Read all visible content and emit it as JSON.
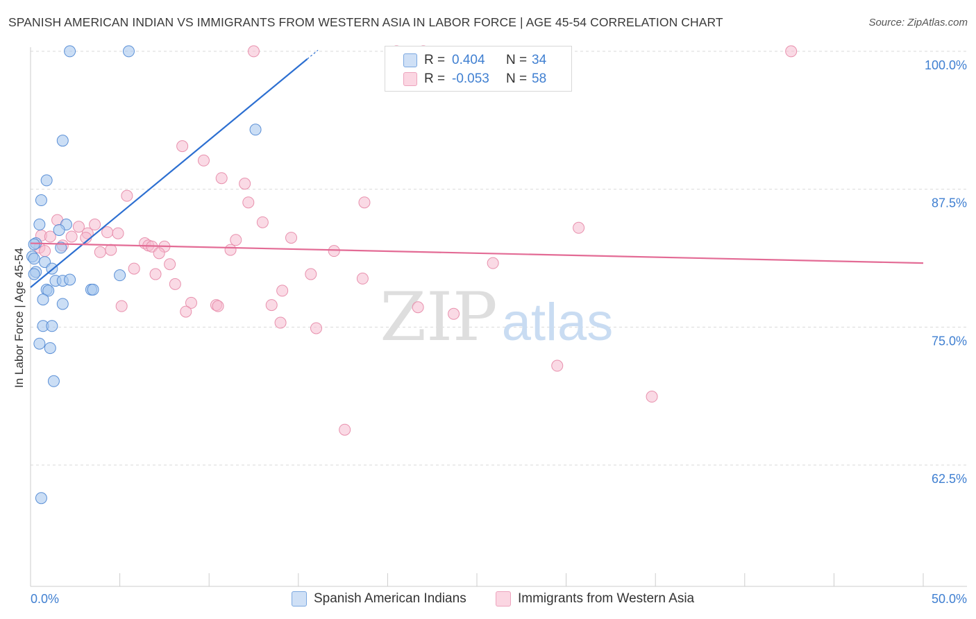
{
  "header": {
    "title": "SPANISH AMERICAN INDIAN VS IMMIGRANTS FROM WESTERN ASIA IN LABOR FORCE | AGE 45-54 CORRELATION CHART",
    "source": "Source: ZipAtlas.com"
  },
  "watermark": {
    "zip": "ZIP",
    "atlas": "atlas"
  },
  "legend": {
    "series1": {
      "r_label": "R =",
      "r_value": "0.404",
      "n_label": "N =",
      "n_value": "34"
    },
    "series2": {
      "r_label": "R =",
      "r_value": "-0.053",
      "n_label": "N =",
      "n_value": "58"
    }
  },
  "colors": {
    "blue_fill": "#a9c8ef",
    "blue_stroke": "#5a8fd6",
    "blue_line": "#2c6fd1",
    "pink_fill": "#f6bccf",
    "pink_stroke": "#e890ad",
    "pink_line": "#e36b95",
    "tick_label": "#3f7fd1",
    "grid": "#d9d9d9"
  },
  "chart_data": {
    "type": "scatter",
    "title": "SPANISH AMERICAN INDIAN VS IMMIGRANTS FROM WESTERN ASIA IN LABOR FORCE | AGE 45-54 CORRELATION CHART",
    "xlabel": "",
    "ylabel": "In Labor Force | Age 45-54",
    "xlim": [
      0,
      50
    ],
    "ylim": [
      51.5,
      101
    ],
    "x_tick_labels": [
      "0.0%",
      "50.0%"
    ],
    "y_ticks": [
      62.5,
      75.0,
      87.5,
      100.0
    ],
    "y_tick_labels": [
      "62.5%",
      "75.0%",
      "87.5%",
      "100.0%"
    ],
    "series": [
      {
        "name": "Spanish American Indians",
        "color": "#a9c8ef",
        "trend": {
          "x0": 0.0,
          "y0": 78.6,
          "x1": 15.5,
          "y1": 99.3
        },
        "points": [
          [
            2.2,
            100.0
          ],
          [
            5.5,
            100.0
          ],
          [
            12.6,
            92.9
          ],
          [
            1.8,
            91.9
          ],
          [
            0.9,
            88.3
          ],
          [
            0.6,
            86.5
          ],
          [
            0.5,
            84.3
          ],
          [
            2.0,
            84.3
          ],
          [
            1.6,
            83.8
          ],
          [
            0.3,
            82.6
          ],
          [
            1.7,
            82.2
          ],
          [
            0.1,
            81.4
          ],
          [
            0.2,
            81.2
          ],
          [
            0.8,
            80.9
          ],
          [
            1.2,
            80.3
          ],
          [
            0.3,
            80.0
          ],
          [
            0.2,
            79.8
          ],
          [
            5.0,
            79.7
          ],
          [
            1.4,
            79.2
          ],
          [
            1.8,
            79.2
          ],
          [
            2.2,
            79.3
          ],
          [
            0.9,
            78.4
          ],
          [
            1.0,
            78.3
          ],
          [
            3.4,
            78.4
          ],
          [
            3.5,
            78.4
          ],
          [
            0.7,
            77.5
          ],
          [
            1.8,
            77.1
          ],
          [
            0.7,
            75.1
          ],
          [
            1.2,
            75.1
          ],
          [
            0.5,
            73.5
          ],
          [
            1.1,
            73.1
          ],
          [
            1.3,
            70.1
          ],
          [
            0.6,
            59.5
          ],
          [
            0.2,
            82.5
          ]
        ]
      },
      {
        "name": "Immigrants from Western Asia",
        "color": "#f6bccf",
        "trend": {
          "x0": 0.0,
          "y0": 82.6,
          "x1": 50.0,
          "y1": 80.8
        },
        "points": [
          [
            12.5,
            100.0
          ],
          [
            20.5,
            100.0
          ],
          [
            42.6,
            100.0
          ],
          [
            8.5,
            91.4
          ],
          [
            9.7,
            90.1
          ],
          [
            10.7,
            88.5
          ],
          [
            12.0,
            88.0
          ],
          [
            5.4,
            86.9
          ],
          [
            12.2,
            86.3
          ],
          [
            18.7,
            86.3
          ],
          [
            1.5,
            84.7
          ],
          [
            13.0,
            84.5
          ],
          [
            3.6,
            84.3
          ],
          [
            2.7,
            84.1
          ],
          [
            4.3,
            83.6
          ],
          [
            3.2,
            83.5
          ],
          [
            4.9,
            83.5
          ],
          [
            0.6,
            83.3
          ],
          [
            1.1,
            83.2
          ],
          [
            2.3,
            83.2
          ],
          [
            3.1,
            83.1
          ],
          [
            14.6,
            83.1
          ],
          [
            11.5,
            82.9
          ],
          [
            6.4,
            82.6
          ],
          [
            6.6,
            82.4
          ],
          [
            1.8,
            82.4
          ],
          [
            7.5,
            82.3
          ],
          [
            6.8,
            82.3
          ],
          [
            0.5,
            82.2
          ],
          [
            4.5,
            82.0
          ],
          [
            11.2,
            82.0
          ],
          [
            3.9,
            81.8
          ],
          [
            17.0,
            81.9
          ],
          [
            7.2,
            81.7
          ],
          [
            0.8,
            81.9
          ],
          [
            7.8,
            80.7
          ],
          [
            25.9,
            80.8
          ],
          [
            5.8,
            80.3
          ],
          [
            7.0,
            79.8
          ],
          [
            15.7,
            79.8
          ],
          [
            18.6,
            79.4
          ],
          [
            8.1,
            78.9
          ],
          [
            14.1,
            78.3
          ],
          [
            5.1,
            76.9
          ],
          [
            9.0,
            77.2
          ],
          [
            10.4,
            77.0
          ],
          [
            10.5,
            76.9
          ],
          [
            13.5,
            77.0
          ],
          [
            21.7,
            76.8
          ],
          [
            8.7,
            76.4
          ],
          [
            23.7,
            76.2
          ],
          [
            14.0,
            75.4
          ],
          [
            16.0,
            74.9
          ],
          [
            30.7,
            84.0
          ],
          [
            29.5,
            71.5
          ],
          [
            34.8,
            68.7
          ],
          [
            17.6,
            65.7
          ],
          [
            22.0,
            100.0
          ]
        ]
      }
    ]
  },
  "bottom_legend": {
    "series1_label": "Spanish American Indians",
    "series2_label": "Immigrants from Western Asia"
  }
}
